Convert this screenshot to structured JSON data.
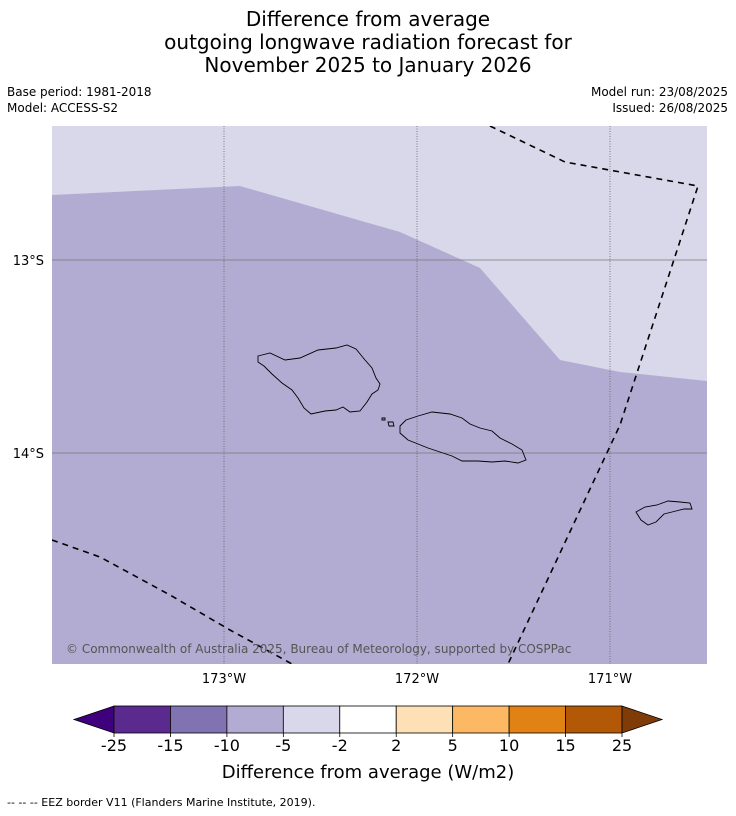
{
  "title": {
    "line1": "Difference from average",
    "line2": "outgoing longwave radiation forecast for",
    "line3": "November 2025 to January 2026"
  },
  "meta": {
    "base_period": "Base period: 1981-2018",
    "model": "Model: ACCESS-S2",
    "model_run": "Model run: 23/08/2025",
    "issued": "Issued: 26/08/2025"
  },
  "map": {
    "lat_labels": [
      "13°S",
      "14°S"
    ],
    "lon_labels": [
      "173°W",
      "172°W",
      "171°W"
    ],
    "copyright": "© Commonwealth of Australia 2025, Bureau of Meteorology, supported by COSPPac",
    "category_colors": {
      "neg_5_to_neg_2": "#d8d8ea",
      "neg_10_to_neg_5": "#b2acd3"
    }
  },
  "colorbar": {
    "title": "Difference from average (W/m2)",
    "ticks": [
      "-25",
      "-15",
      "-10",
      "-5",
      "-2",
      "2",
      "5",
      "10",
      "15",
      "25"
    ],
    "colors": [
      "#3f007d",
      "#5b2a8f",
      "#8173b1",
      "#b2acd3",
      "#d8d8ea",
      "#ffffff",
      "#fde0b6",
      "#fdb863",
      "#e08214",
      "#b35806",
      "#7f3b08"
    ]
  },
  "footer": "--  --  -- EEZ border V11 (Flanders Marine Institute, 2019)."
}
